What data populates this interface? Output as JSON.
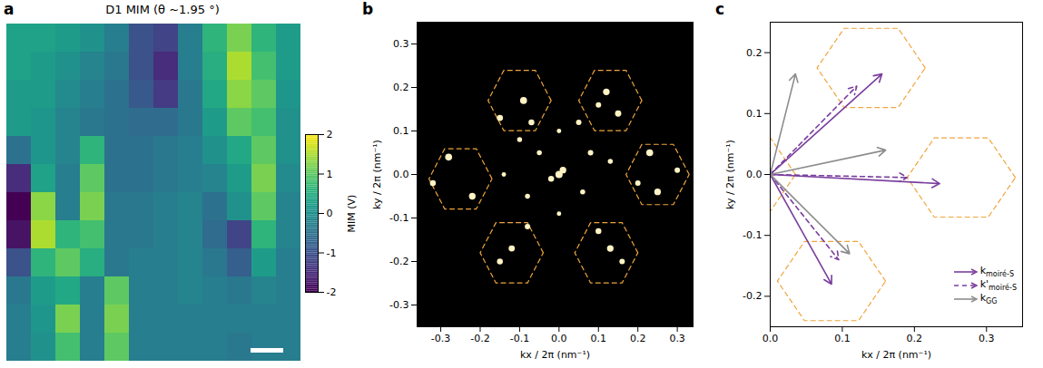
{
  "chart_data": [
    {
      "type": "heatmap",
      "panel": "a",
      "title": "D1 MIM (θ ~1.95 °)",
      "tick_labels": false,
      "colorbar_label": "MIM (V)",
      "clim": [
        -2,
        2
      ],
      "cticks": [
        2,
        1,
        0,
        -1,
        -2
      ],
      "cells": [
        [
          0.3,
          0.3,
          0.2,
          0,
          -0.3,
          -1.0,
          -1.2,
          -0.3,
          0.6,
          1.2,
          0.6,
          0.2
        ],
        [
          0.3,
          0.2,
          0,
          -0.2,
          -0.4,
          -1.0,
          -1.5,
          -0.3,
          0.5,
          1.5,
          0.8,
          0.2
        ],
        [
          0.2,
          0.2,
          -0.1,
          -0.3,
          -0.5,
          -0.9,
          -1.3,
          -0.4,
          0.4,
          1.3,
          1.0,
          0.1
        ],
        [
          0.2,
          0.1,
          -0.2,
          -0.4,
          -0.5,
          -0.6,
          -0.6,
          -0.4,
          0.2,
          1.0,
          0.8,
          0
        ],
        [
          -0.5,
          0.1,
          -0.2,
          0.6,
          -0.5,
          -0.5,
          -0.4,
          -0.3,
          0,
          0.4,
          1.0,
          0
        ],
        [
          -1.5,
          0.3,
          -0.3,
          1.0,
          -0.5,
          -0.5,
          -0.4,
          -0.3,
          -0.2,
          0.2,
          1.2,
          -0.1
        ],
        [
          -2.0,
          1.3,
          -0.3,
          1.2,
          -0.4,
          -0.4,
          -0.3,
          -0.2,
          -0.5,
          0,
          1.0,
          -0.2
        ],
        [
          -1.8,
          1.5,
          0.6,
          0.8,
          -0.4,
          -0.4,
          -0.3,
          -0.2,
          -0.6,
          -1.2,
          0.6,
          -0.2
        ],
        [
          -1.0,
          0.6,
          1.0,
          0.5,
          -0.4,
          -0.3,
          -0.3,
          -0.2,
          -0.4,
          -0.8,
          0.2,
          -0.3
        ],
        [
          -0.4,
          0.2,
          0.4,
          -0.3,
          1.0,
          -0.3,
          -0.3,
          -0.2,
          -0.3,
          -0.4,
          -0.2,
          -0.3
        ],
        [
          -0.3,
          0.1,
          1.2,
          -0.3,
          1.2,
          -0.3,
          -0.3,
          -0.3,
          -0.3,
          -0.3,
          -0.3,
          -0.3
        ],
        [
          -0.3,
          0,
          0.8,
          -0.3,
          1.0,
          -0.3,
          -0.3,
          -0.3,
          -0.3,
          -0.4,
          -0.3,
          -0.3
        ]
      ]
    },
    {
      "type": "scatter",
      "panel": "b",
      "xlabel": "kx / 2π (nm⁻¹)",
      "ylabel": "ky / 2π (nm⁻¹)",
      "xlim": [
        -0.36,
        0.34
      ],
      "ylim": [
        -0.35,
        0.35
      ],
      "xticks": [
        -0.3,
        -0.2,
        -0.1,
        {
          "value": 0,
          "label": "0.0"
        },
        0.1,
        0.2,
        0.3
      ],
      "yticks": [
        -0.3,
        -0.2,
        -0.1,
        {
          "value": 0,
          "label": "0.0"
        },
        0.1,
        0.2,
        0.3
      ],
      "color": "#fff3c4",
      "spots": [
        [
          0,
          0,
          1.0
        ],
        [
          0.01,
          0.01,
          0.8
        ],
        [
          -0.02,
          -0.01,
          0.6
        ],
        [
          -0.09,
          0.17,
          0.9
        ],
        [
          -0.07,
          0.12,
          0.6
        ],
        [
          -0.1,
          0.08,
          0.4
        ],
        [
          -0.15,
          0.13,
          0.7
        ],
        [
          0.12,
          0.19,
          0.8
        ],
        [
          0.15,
          0.14,
          0.7
        ],
        [
          0.1,
          0.16,
          0.5
        ],
        [
          0.05,
          0.12,
          0.5
        ],
        [
          0.23,
          0.05,
          0.9
        ],
        [
          0.3,
          0.01,
          0.5
        ],
        [
          0.25,
          -0.04,
          0.8
        ],
        [
          0.2,
          -0.02,
          0.5
        ],
        [
          -0.28,
          0.04,
          0.9
        ],
        [
          -0.22,
          -0.05,
          0.8
        ],
        [
          -0.32,
          -0.02,
          0.6
        ],
        [
          -0.12,
          -0.17,
          0.7
        ],
        [
          -0.15,
          -0.2,
          0.6
        ],
        [
          -0.08,
          -0.12,
          0.5
        ],
        [
          0.13,
          -0.17,
          0.8
        ],
        [
          0.1,
          -0.13,
          0.6
        ],
        [
          0.16,
          -0.2,
          0.5
        ],
        [
          -0.05,
          0.05,
          0.4
        ],
        [
          0.06,
          -0.04,
          0.4
        ],
        [
          0.08,
          0.05,
          0.5
        ],
        [
          -0.08,
          -0.05,
          0.4
        ],
        [
          0.13,
          0.03,
          0.4
        ],
        [
          -0.14,
          0,
          0.3
        ],
        [
          0,
          0.1,
          0.3
        ],
        [
          0,
          -0.09,
          0.3
        ]
      ],
      "hexagons": {
        "color": "#f0a53c",
        "line_style": "dashed",
        "radius": 0.08,
        "centers": [
          [
            -0.1,
            0.17
          ],
          [
            0.13,
            0.17
          ],
          [
            0.25,
            0
          ],
          [
            -0.25,
            -0.01
          ],
          [
            -0.12,
            -0.18
          ],
          [
            0.12,
            -0.18
          ]
        ]
      }
    },
    {
      "type": "vector",
      "panel": "c",
      "xlabel": "kx / 2π (nm⁻¹)",
      "ylabel": "ky / 2π (nm⁻¹)",
      "xlim": [
        0,
        0.35
      ],
      "ylim": [
        -0.25,
        0.25
      ],
      "xticks": [
        {
          "value": 0,
          "label": "0.0"
        },
        0.1,
        0.2,
        0.3
      ],
      "yticks": [
        -0.2,
        -0.1,
        {
          "value": 0,
          "label": "0.0"
        },
        0.1,
        0.2
      ],
      "legend": "lower right",
      "origin": [
        0,
        0
      ],
      "hexagons": {
        "color": "#f0a53c",
        "line_style": "dashed",
        "radius": 0.075,
        "centers": [
          [
            0.14,
            0.175
          ],
          [
            0.265,
            -0.005
          ],
          [
            0.085,
            -0.175
          ],
          [
            -0.04,
            0
          ]
        ]
      },
      "series": [
        {
          "symbol": "k",
          "subscript": "moiré-S",
          "color": "#7a3e9d",
          "line_style": "solid",
          "vectors": [
            [
              0.155,
              0.165
            ],
            [
              0.235,
              -0.015
            ],
            [
              0.085,
              -0.18
            ]
          ]
        },
        {
          "symbol": "k'",
          "subscript": "moiré-S",
          "color": "#7a3e9d",
          "line_style": "dashed",
          "vectors": [
            [
              0.12,
              0.145
            ],
            [
              0.19,
              -0.005
            ],
            [
              0.095,
              -0.14
            ]
          ]
        },
        {
          "symbol": "k",
          "subscript": "GG",
          "color": "#8c8c8c",
          "line_style": "solid",
          "vectors": [
            [
              0.035,
              0.165
            ],
            [
              0.16,
              0.04
            ],
            [
              0.11,
              -0.13
            ]
          ]
        }
      ]
    }
  ]
}
